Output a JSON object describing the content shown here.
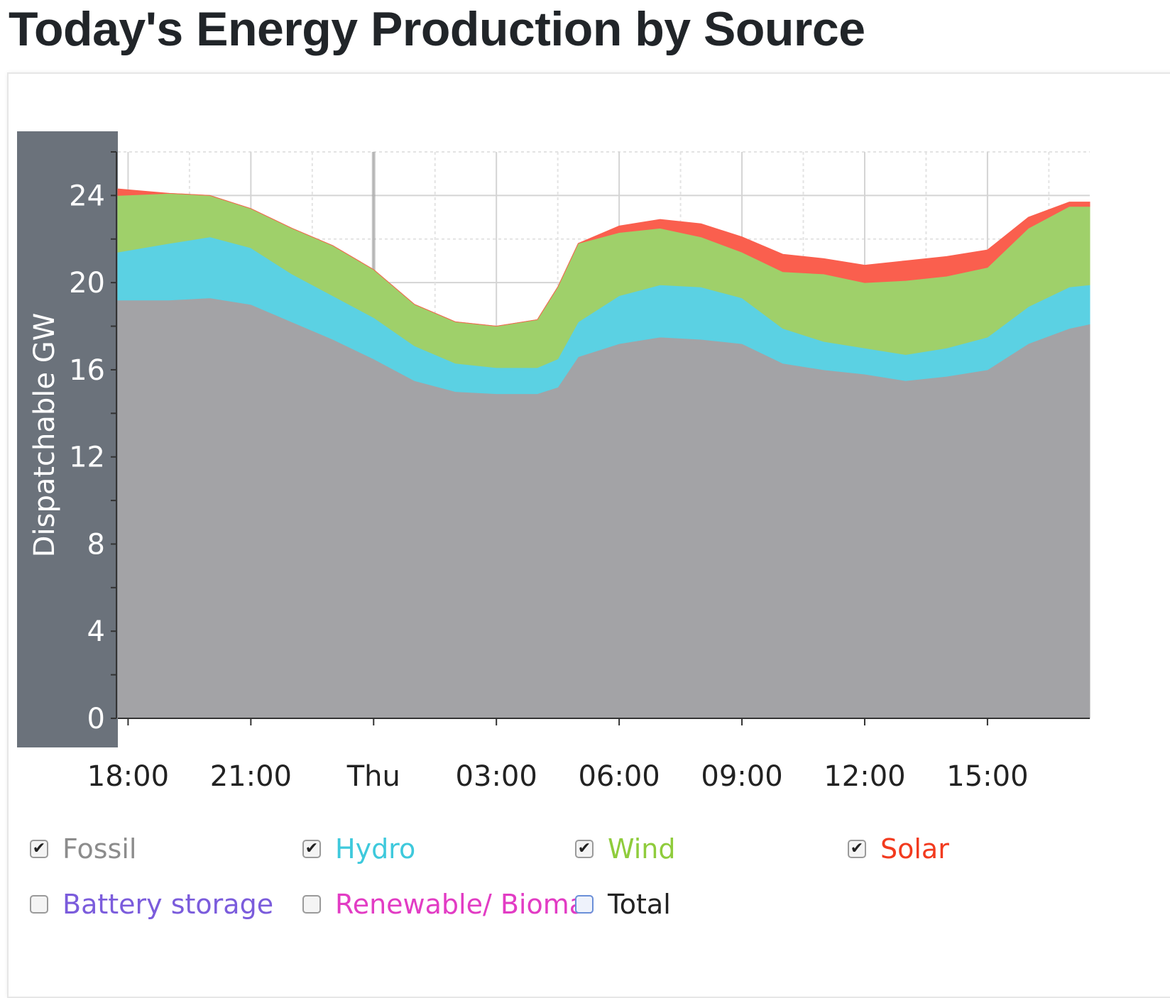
{
  "page_title": "Today's Energy Production by Source",
  "colors": {
    "fossil": "#a3a3a6",
    "hydro": "#5bd1e3",
    "wind": "#9fd06a",
    "solar": "#fa5f4e",
    "battery": "#7b5cdc",
    "renewable": "#e23cc4",
    "total": "#222222",
    "axis_band": "#6b727b"
  },
  "legend": [
    {
      "label": "Fossil",
      "checked": true,
      "color_key": "fossil",
      "legend_color": "#8c8c8c"
    },
    {
      "label": "Hydro",
      "checked": true,
      "color_key": "hydro",
      "legend_color": "#3ec9dc"
    },
    {
      "label": "Wind",
      "checked": true,
      "color_key": "wind",
      "legend_color": "#8fcc3c"
    },
    {
      "label": "Solar",
      "checked": true,
      "color_key": "solar",
      "legend_color": "#f23a1e"
    },
    {
      "label": "Battery storage",
      "checked": false,
      "color_key": "battery",
      "legend_color": "#7b5cdc"
    },
    {
      "label": "Renewable/ Bioma.",
      "checked": false,
      "color_key": "renewable",
      "legend_color": "#e23cc4"
    },
    {
      "label": "Total",
      "checked": false,
      "color_key": "total",
      "legend_color": "#222222"
    }
  ],
  "chart_data": {
    "type": "area",
    "stacked": true,
    "title": "Today's Energy Production by Source",
    "ylabel": "Dispatchable GW",
    "xlabel": "",
    "ylim": [
      0,
      26
    ],
    "xlim": [
      -0.25,
      23.5
    ],
    "y_ticks": [
      0,
      4,
      8,
      12,
      16,
      20,
      24
    ],
    "x_ticks": [
      {
        "h": 0,
        "label": "18:00"
      },
      {
        "h": 3,
        "label": "21:00"
      },
      {
        "h": 6,
        "label": "Thu"
      },
      {
        "h": 9,
        "label": "03:00"
      },
      {
        "h": 12,
        "label": "06:00"
      },
      {
        "h": 15,
        "label": "09:00"
      },
      {
        "h": 18,
        "label": "12:00"
      },
      {
        "h": 21,
        "label": "15:00"
      }
    ],
    "x_hours_from_1800": [
      -0.25,
      1,
      2,
      3,
      4,
      5,
      6,
      7,
      8,
      9,
      10,
      10.5,
      11,
      12,
      13,
      14,
      15,
      16,
      17,
      18,
      19,
      20,
      21,
      22,
      23,
      23.5
    ],
    "series": [
      {
        "name": "Fossil",
        "values": [
          19.2,
          19.2,
          19.3,
          19.0,
          18.2,
          17.4,
          16.5,
          15.5,
          15.0,
          14.9,
          14.9,
          15.2,
          16.6,
          17.2,
          17.5,
          17.4,
          17.2,
          16.3,
          16.0,
          15.8,
          15.5,
          15.7,
          16.0,
          17.2,
          17.9,
          18.1
        ]
      },
      {
        "name": "Hydro",
        "values": [
          2.2,
          2.6,
          2.8,
          2.6,
          2.2,
          2.0,
          1.9,
          1.6,
          1.3,
          1.2,
          1.2,
          1.3,
          1.6,
          2.2,
          2.4,
          2.4,
          2.1,
          1.6,
          1.3,
          1.2,
          1.2,
          1.3,
          1.5,
          1.7,
          1.9,
          1.8
        ]
      },
      {
        "name": "Wind",
        "values": [
          2.6,
          2.3,
          1.9,
          1.8,
          2.1,
          2.3,
          2.2,
          1.9,
          1.9,
          1.9,
          2.2,
          3.3,
          3.6,
          2.9,
          2.6,
          2.3,
          2.1,
          2.6,
          3.1,
          3.0,
          3.4,
          3.3,
          3.2,
          3.6,
          3.7,
          3.6
        ]
      },
      {
        "name": "Solar",
        "values": [
          0.3,
          0,
          0,
          0,
          0,
          0,
          0,
          0,
          0,
          0,
          0,
          0,
          0,
          0.3,
          0.4,
          0.6,
          0.7,
          0.8,
          0.7,
          0.8,
          0.9,
          0.9,
          0.8,
          0.5,
          0.2,
          0.2
        ]
      }
    ]
  }
}
